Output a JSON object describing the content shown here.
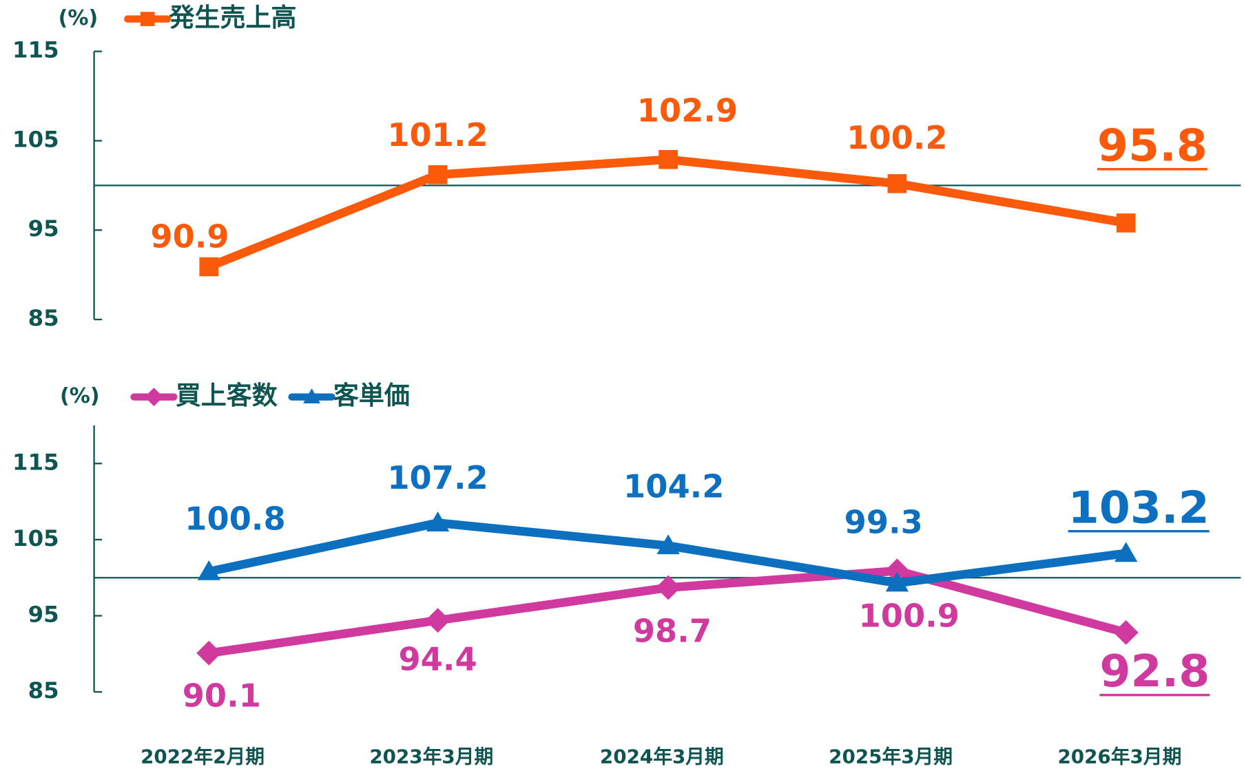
{
  "chart_data": [
    {
      "type": "line",
      "y_label": "(%)",
      "categories": [
        null,
        null,
        null,
        null,
        null
      ],
      "ylim": [
        85,
        115
      ],
      "yticks": [
        85,
        95,
        105,
        115
      ],
      "hline": 100,
      "series": [
        {
          "name": "発生売上高",
          "color": "#fa5a0a",
          "marker": "square",
          "values": [
            90.9,
            101.2,
            102.9,
            100.2,
            95.8
          ]
        }
      ]
    },
    {
      "type": "line",
      "y_label": "(%)",
      "categories": [
        "2022年2月期",
        "2023年3月期",
        "2024年3月期",
        "2025年3月期",
        "2026年3月期"
      ],
      "ylim": [
        85,
        120
      ],
      "yticks": [
        85,
        95,
        105,
        115
      ],
      "hline": 100,
      "series": [
        {
          "name": "買上客数",
          "color": "#d03a9f",
          "marker": "diamond",
          "values": [
            90.1,
            94.4,
            98.7,
            100.9,
            92.8
          ]
        },
        {
          "name": "客単価",
          "color": "#0c6fc0",
          "marker": "triangle",
          "values": [
            100.8,
            107.2,
            104.2,
            99.3,
            103.2
          ]
        }
      ]
    }
  ]
}
